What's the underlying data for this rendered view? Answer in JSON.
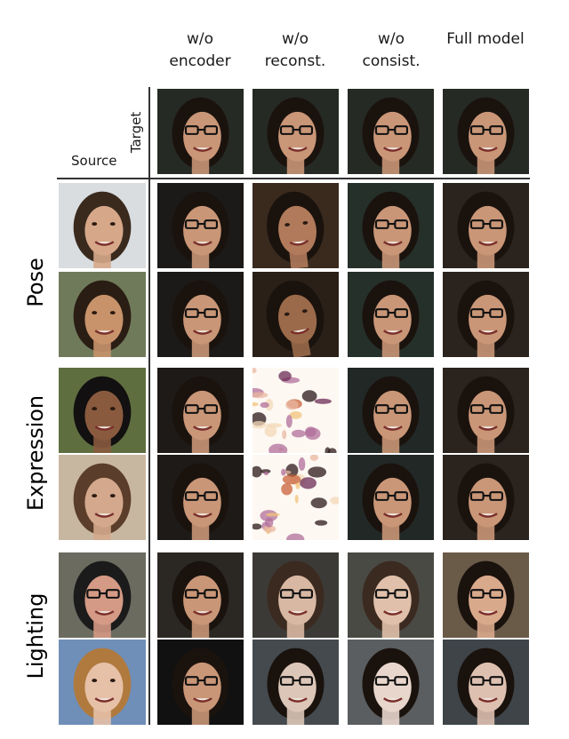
{
  "columns": [
    {
      "label": "w/o\nencoder"
    },
    {
      "label": "w/o\nreconst."
    },
    {
      "label": "w/o\nconsist."
    },
    {
      "label": "Full model"
    }
  ],
  "corner": {
    "target": "Target",
    "source": "Source"
  },
  "groups": [
    {
      "label": "Pose"
    },
    {
      "label": "Expression"
    },
    {
      "label": "Lighting"
    }
  ]
}
